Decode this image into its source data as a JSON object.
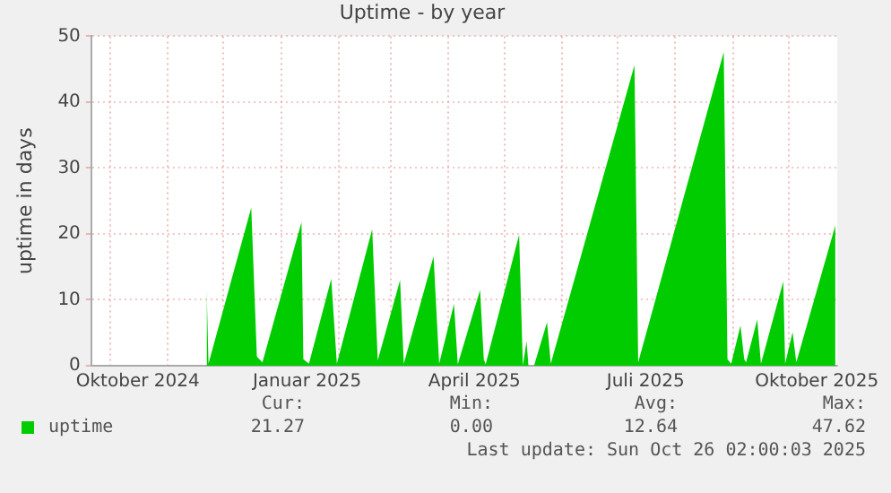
{
  "chart_data": {
    "type": "area",
    "title": "Uptime - by year",
    "ylabel": "uptime in days",
    "x": [
      "2024-11-22",
      "2024-11-23",
      "2024-12-16",
      "2024-12-19",
      "2024-12-22",
      "2025-01-12",
      "2025-01-13",
      "2025-01-16",
      "2025-01-28",
      "2025-01-31",
      "2025-02-19",
      "2025-02-22",
      "2025-03-06",
      "2025-03-08",
      "2025-03-24",
      "2025-03-27",
      "2025-04-04",
      "2025-04-06",
      "2025-04-18",
      "2025-04-20",
      "2025-04-21",
      "2025-05-09",
      "2025-05-11",
      "2025-05-13",
      "2025-05-14",
      "2025-05-17",
      "2025-05-24",
      "2025-05-26",
      "2025-07-10",
      "2025-07-12",
      "2025-08-27",
      "2025-08-29",
      "2025-08-31",
      "2025-09-05",
      "2025-09-07",
      "2025-09-08",
      "2025-09-14",
      "2025-09-16",
      "2025-09-28",
      "2025-09-29",
      "2025-10-03",
      "2025-10-05",
      "2025-10-26"
    ],
    "series": [
      {
        "name": "uptime",
        "color": "#00cc00",
        "values": [
          11.8,
          0.3,
          24,
          1.4,
          0.5,
          21.8,
          1,
          0.3,
          13.2,
          0.3,
          20.7,
          0.8,
          13,
          0.3,
          16.6,
          0.3,
          9.4,
          0.2,
          11.5,
          1,
          0.2,
          19.9,
          0,
          3.7,
          0,
          0,
          6.6,
          0.3,
          45.6,
          0.5,
          47.6,
          1,
          0.3,
          6.1,
          1,
          0.5,
          7,
          0.3,
          12.8,
          0.3,
          5.1,
          0.5,
          21.3
        ]
      }
    ],
    "xlim": [
      "2024-09-21",
      "2025-10-27"
    ],
    "xticks": [
      {
        "value": "2024-10-01",
        "label": null
      },
      {
        "value": "2024-10-16",
        "label": "Oktober 2024"
      },
      {
        "value": "2024-11-01",
        "label": null
      },
      {
        "value": "2024-12-01",
        "label": null
      },
      {
        "value": "2025-01-01",
        "label": null
      },
      {
        "value": "2025-01-15",
        "label": "Januar 2025"
      },
      {
        "value": "2025-02-01",
        "label": null
      },
      {
        "value": "2025-03-01",
        "label": null
      },
      {
        "value": "2025-04-01",
        "label": null
      },
      {
        "value": "2025-04-15",
        "label": "April 2025"
      },
      {
        "value": "2025-05-01",
        "label": null
      },
      {
        "value": "2025-06-01",
        "label": null
      },
      {
        "value": "2025-07-01",
        "label": null
      },
      {
        "value": "2025-07-16",
        "label": "Juli 2025"
      },
      {
        "value": "2025-08-01",
        "label": null
      },
      {
        "value": "2025-09-01",
        "label": null
      },
      {
        "value": "2025-10-01",
        "label": null
      },
      {
        "value": "2025-10-16",
        "label": "Oktober 2025"
      }
    ],
    "ylim": [
      0,
      50
    ],
    "yticks": [
      0,
      10,
      20,
      30,
      40,
      50
    ],
    "grid": true,
    "legend": "bottom",
    "annotations": [
      "Cur:",
      "21.27",
      "Min:",
      "0.00",
      "Avg:",
      "12.64",
      "Max:",
      "47.62",
      "Last update: Sun Oct 26 02:00:03 2025"
    ]
  }
}
